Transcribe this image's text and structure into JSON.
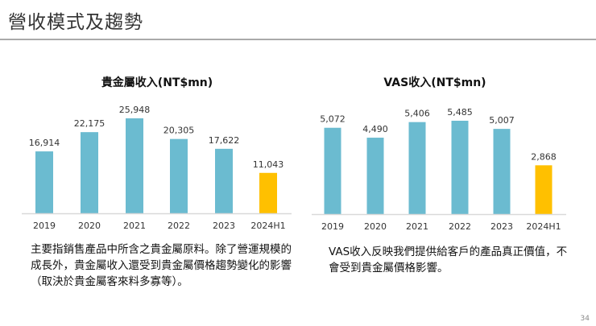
{
  "slide": {
    "title": "營收模式及趨勢",
    "page_number": "34",
    "left_description": "主要指銷售產品中所含之貴金屬原料。除了營運規模的成長外，貴金屬收入還受到貴金屬價格趨勢變化的影響（取決於貴金屬客來料多寡等）。",
    "right_description": "VAS收入反映我們提供給客戶的產品真正價值，不會受到貴金屬價格影響。"
  },
  "colors": {
    "bar": "#6bbbd0",
    "highlight": "#ffc000",
    "axis": "#d9d9d9"
  },
  "chart_data": [
    {
      "type": "bar",
      "title": "貴金屬收入(NT$mn)",
      "categories": [
        "2019",
        "2020",
        "2021",
        "2022",
        "2023",
        "2024H1"
      ],
      "values": [
        16914,
        22175,
        25948,
        20305,
        17622,
        11043
      ],
      "labels": [
        "16,914",
        "22,175",
        "25,948",
        "20,305",
        "17,622",
        "11,043"
      ],
      "highlight_category": "2024H1",
      "grid": false
    },
    {
      "type": "bar",
      "title": "VAS收入(NT$mn)",
      "categories": [
        "2019",
        "2020",
        "2021",
        "2022",
        "2023",
        "2024H1"
      ],
      "values": [
        5072,
        4490,
        5406,
        5485,
        5007,
        2868
      ],
      "labels": [
        "5,072",
        "4,490",
        "5,406",
        "5,485",
        "5,007",
        "2,868"
      ],
      "highlight_category": "2024H1",
      "grid": false
    }
  ]
}
